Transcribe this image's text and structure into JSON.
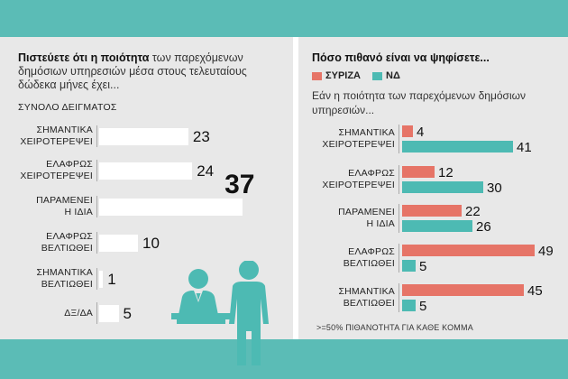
{
  "left": {
    "title_bold": "Πιστεύετε ότι η ποιότητα",
    "title_rest": "των παρεχόμενων δημόσιων υπηρεσιών μέσα στους τελευταίους δώδεκα μήνες έχει...",
    "subtitle": "ΣΥΝΟΛΟ ΔΕΙΓΜΑΤΟΣ"
  },
  "right": {
    "title": "Πόσο πιθανό είναι να ψηφίσετε...",
    "subtitle": "Εάν η ποιότητα των παρεχόμενων δημόσιων υπηρεσιών...",
    "footnote": ">=50% ΠΙΘΑΝΟΤΗΤΑ ΓΙΑ ΚΑΘΕ ΚΟΜΜΑ"
  },
  "colors": {
    "background": "#5bbcb6",
    "syriza": "#e67467",
    "nd": "#4dbab3",
    "panel": "#e8e8e8"
  },
  "icon": "people-at-counter-icon",
  "chart_data": [
    {
      "type": "bar",
      "orientation": "horizontal",
      "title": "Πιστεύετε ότι η ποιότητα των παρεχόμενων δημόσιων υπηρεσιών μέσα στους τελευταίους δώδεκα μήνες έχει...",
      "subtitle": "ΣΥΝΟΛΟ ΔΕΙΓΜΑΤΟΣ",
      "categories": [
        [
          "ΣΗΜΑΝΤΙΚΑ",
          "ΧΕΙΡΟΤΕΡΕΨΕΙ"
        ],
        [
          "ΕΛΑΦΡΩΣ",
          "ΧΕΙΡΟΤΕΡΕΨΕΙ"
        ],
        [
          "ΠΑΡΑΜΕΝΕΙ",
          "Η ΙΔΙΑ"
        ],
        [
          "ΕΛΑΦΡΩΣ",
          "ΒΕΛΤΙΩΘΕΙ"
        ],
        [
          "ΣΗΜΑΝΤΙΚΑ",
          "ΒΕΛΤΙΩΘΕΙ"
        ],
        [
          "ΔΞ/ΔΑ"
        ]
      ],
      "values": [
        23,
        24,
        37,
        10,
        1,
        5
      ]
    },
    {
      "type": "bar",
      "orientation": "horizontal",
      "title": "Πόσο πιθανό είναι να ψηφίσετε...",
      "subtitle": "Εάν η ποιότητα των παρεχόμενων δημόσιων υπηρεσιών...",
      "categories": [
        [
          "ΣΗΜΑΝΤΙΚΑ",
          "ΧΕΙΡΟΤΕΡΕΨΕΙ"
        ],
        [
          "ΕΛΑΦΡΩΣ",
          "ΧΕΙΡΟΤΕΡΕΨΕΙ"
        ],
        [
          "ΠΑΡΑΜΕΝΕΙ",
          "Η ΙΔΙΑ"
        ],
        [
          "ΕΛΑΦΡΩΣ",
          "ΒΕΛΤΙΩΘΕΙ"
        ],
        [
          "ΣΗΜΑΝΤΙΚΑ",
          "ΒΕΛΤΙΩΘΕΙ"
        ]
      ],
      "series": [
        {
          "name": "ΣΥΡΙΖΑ",
          "values": [
            4,
            12,
            22,
            49,
            45
          ]
        },
        {
          "name": "ΝΔ",
          "values": [
            41,
            30,
            26,
            5,
            5
          ]
        }
      ],
      "note": ">=50% ΠΙΘΑΝΟΤΗΤΑ ΓΙΑ ΚΑΘΕ ΚΟΜΜΑ"
    }
  ]
}
